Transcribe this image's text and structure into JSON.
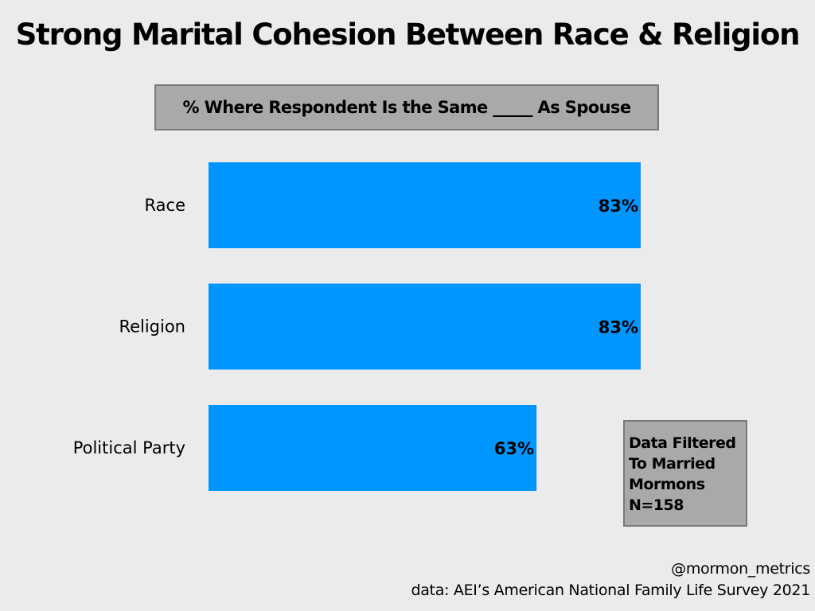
{
  "chart_data": {
    "type": "bar",
    "orientation": "horizontal",
    "title": "Strong Marital Cohesion Between Race & Religion",
    "subtitle": "% Where Respondent Is the Same _____ As Spouse",
    "categories": [
      "Race",
      "Religion",
      "Political Party"
    ],
    "values": [
      83,
      83,
      63
    ],
    "value_labels": [
      "83%",
      "83%",
      "63%"
    ],
    "xlim": [
      0,
      100
    ],
    "grid": false,
    "legend": "none",
    "bar_color": "#0096ff",
    "background_color": "#ebebeb"
  },
  "note": {
    "lines": [
      "Data Filtered",
      "To Married",
      "Mormons",
      "N=158"
    ]
  },
  "footer": {
    "handle": "@mormon_metrics",
    "source": "data: AEI’s American National Family Life Survey 2021"
  }
}
